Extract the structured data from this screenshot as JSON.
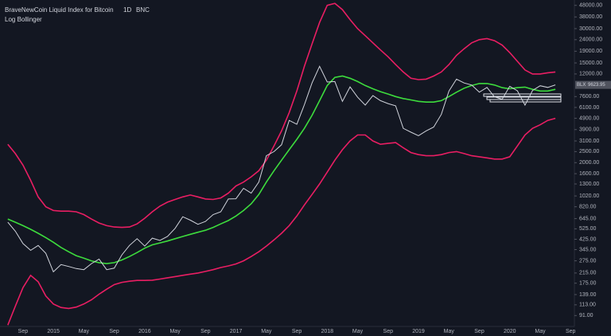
{
  "chart_data": {
    "type": "line",
    "title": "BraveNewCoin Liquid Index for Bitcoin",
    "interval": "1D",
    "exchange": "BNC",
    "indicator": "Log Bollinger",
    "symbol": "BLX",
    "last_price": 9623.95,
    "log_scale": true,
    "grid": false,
    "categories": [
      null,
      null,
      "Sep",
      null,
      null,
      null,
      "2015",
      null,
      null,
      null,
      "May",
      null,
      null,
      null,
      "Sep",
      null,
      null,
      null,
      "2016",
      null,
      null,
      null,
      "May",
      null,
      null,
      null,
      "Sep",
      null,
      null,
      null,
      "2017",
      null,
      null,
      null,
      "May",
      null,
      null,
      null,
      "Sep",
      null,
      null,
      null,
      "2018",
      null,
      null,
      null,
      "May",
      null,
      null,
      null,
      "Sep",
      null,
      null,
      null,
      "2019",
      null,
      null,
      null,
      "May",
      null,
      null,
      null,
      "Sep",
      null,
      null,
      null,
      "2020",
      null,
      null,
      null,
      "May",
      null,
      null,
      null,
      "Sep"
    ],
    "series": [
      {
        "color": "#d1d4dc",
        "values": [
          600,
          500,
          390,
          340,
          375,
          320,
          220,
          255,
          245,
          235,
          230,
          260,
          285,
          230,
          237,
          310,
          375,
          430,
          370,
          435,
          415,
          450,
          530,
          670,
          625,
          575,
          610,
          700,
          740,
          960,
          965,
          1190,
          1080,
          1350,
          2300,
          2500,
          2870,
          4700,
          4340,
          6450,
          10000,
          14000,
          10200,
          10300,
          6900,
          9250,
          7500,
          6400,
          7750,
          7000,
          6600,
          6300,
          4000,
          3700,
          3450,
          3800,
          4100,
          5300,
          8500,
          10800,
          10000,
          9600,
          8300,
          9150,
          7550,
          7200,
          9350,
          8550,
          6400,
          8600,
          9450,
          9150,
          9623.95,
          null,
          null
        ]
      },
      {
        "color": "#e91e63",
        "values": [
          2900,
          2400,
          1900,
          1400,
          1000,
          820,
          760,
          750,
          750,
          740,
          700,
          640,
          590,
          560,
          545,
          540,
          545,
          580,
          650,
          740,
          830,
          900,
          950,
          1000,
          1040,
          1000,
          960,
          950,
          980,
          1080,
          1250,
          1350,
          1500,
          1700,
          2100,
          2800,
          3800,
          5500,
          8500,
          14000,
          22000,
          34000,
          48000,
          50000,
          44000,
          36000,
          30000,
          26000,
          22500,
          19500,
          17000,
          14500,
          12500,
          11000,
          10700,
          10800,
          11500,
          12500,
          14500,
          17500,
          20000,
          22500,
          24000,
          24500,
          23500,
          21500,
          18500,
          15500,
          13000,
          12000,
          12000,
          12300,
          12500,
          null,
          null
        ]
      },
      {
        "color": "#3ddc3d",
        "values": [
          640,
          600,
          560,
          520,
          480,
          440,
          400,
          360,
          330,
          305,
          290,
          275,
          265,
          260,
          265,
          280,
          300,
          325,
          355,
          380,
          395,
          410,
          430,
          450,
          470,
          490,
          510,
          540,
          580,
          620,
          680,
          760,
          870,
          1050,
          1350,
          1700,
          2100,
          2600,
          3200,
          4000,
          5200,
          7000,
          9500,
          11200,
          11500,
          11000,
          10300,
          9500,
          8900,
          8400,
          8000,
          7600,
          7300,
          7100,
          6900,
          6800,
          6800,
          7000,
          7600,
          8300,
          9000,
          9500,
          9900,
          9900,
          9600,
          9100,
          8900,
          9100,
          9200,
          8800,
          8500,
          8500,
          8800,
          null,
          null
        ]
      },
      {
        "color": "#e91e63",
        "values": [
          75,
          110,
          160,
          205,
          180,
          135,
          115,
          107,
          105,
          108,
          115,
          125,
          140,
          155,
          170,
          178,
          182,
          185,
          185,
          186,
          190,
          195,
          200,
          205,
          210,
          215,
          222,
          230,
          240,
          248,
          258,
          275,
          300,
          330,
          370,
          420,
          480,
          560,
          680,
          850,
          1050,
          1300,
          1650,
          2100,
          2600,
          3100,
          3500,
          3500,
          3100,
          2900,
          2950,
          3000,
          2700,
          2450,
          2350,
          2300,
          2300,
          2350,
          2450,
          2500,
          2400,
          2300,
          2250,
          2200,
          2150,
          2150,
          2250,
          2800,
          3500,
          4000,
          4300,
          4700,
          4900,
          null,
          null
        ]
      }
    ],
    "ylim": [
      73,
      53500
    ],
    "yticks": [
      {
        "value": 91,
        "label": "91.00"
      },
      {
        "value": 113,
        "label": "113.00"
      },
      {
        "value": 139,
        "label": "139.00"
      },
      {
        "value": 175,
        "label": "175.00"
      },
      {
        "value": 215,
        "label": "215.00"
      },
      {
        "value": 275,
        "label": "275.00"
      },
      {
        "value": 345,
        "label": "345.00"
      },
      {
        "value": 425,
        "label": "425.00"
      },
      {
        "value": 525,
        "label": "525.00"
      },
      {
        "value": 645,
        "label": "645.00"
      },
      {
        "value": 820,
        "label": "820.00"
      },
      {
        "value": 1020,
        "label": "1020.00"
      },
      {
        "value": 1300,
        "label": "1300.00"
      },
      {
        "value": 1600,
        "label": "1600.00"
      },
      {
        "value": 2000,
        "label": "2000.00"
      },
      {
        "value": 2500,
        "label": "2500.00"
      },
      {
        "value": 3100,
        "label": "3100.00"
      },
      {
        "value": 3900,
        "label": "3900.00"
      },
      {
        "value": 4900,
        "label": "4900.00"
      },
      {
        "value": 6100,
        "label": "6100.00"
      },
      {
        "value": 7600,
        "label": "7600.00"
      },
      {
        "value": 12000,
        "label": "12000.00"
      },
      {
        "value": 15000,
        "label": "15000.00"
      },
      {
        "value": 19000,
        "label": "19000.00"
      },
      {
        "value": 24000,
        "label": "24000.00"
      },
      {
        "value": 30000,
        "label": "30000.00"
      },
      {
        "value": 38000,
        "label": "38000.00"
      },
      {
        "value": 48000,
        "label": "48000.00"
      }
    ]
  }
}
